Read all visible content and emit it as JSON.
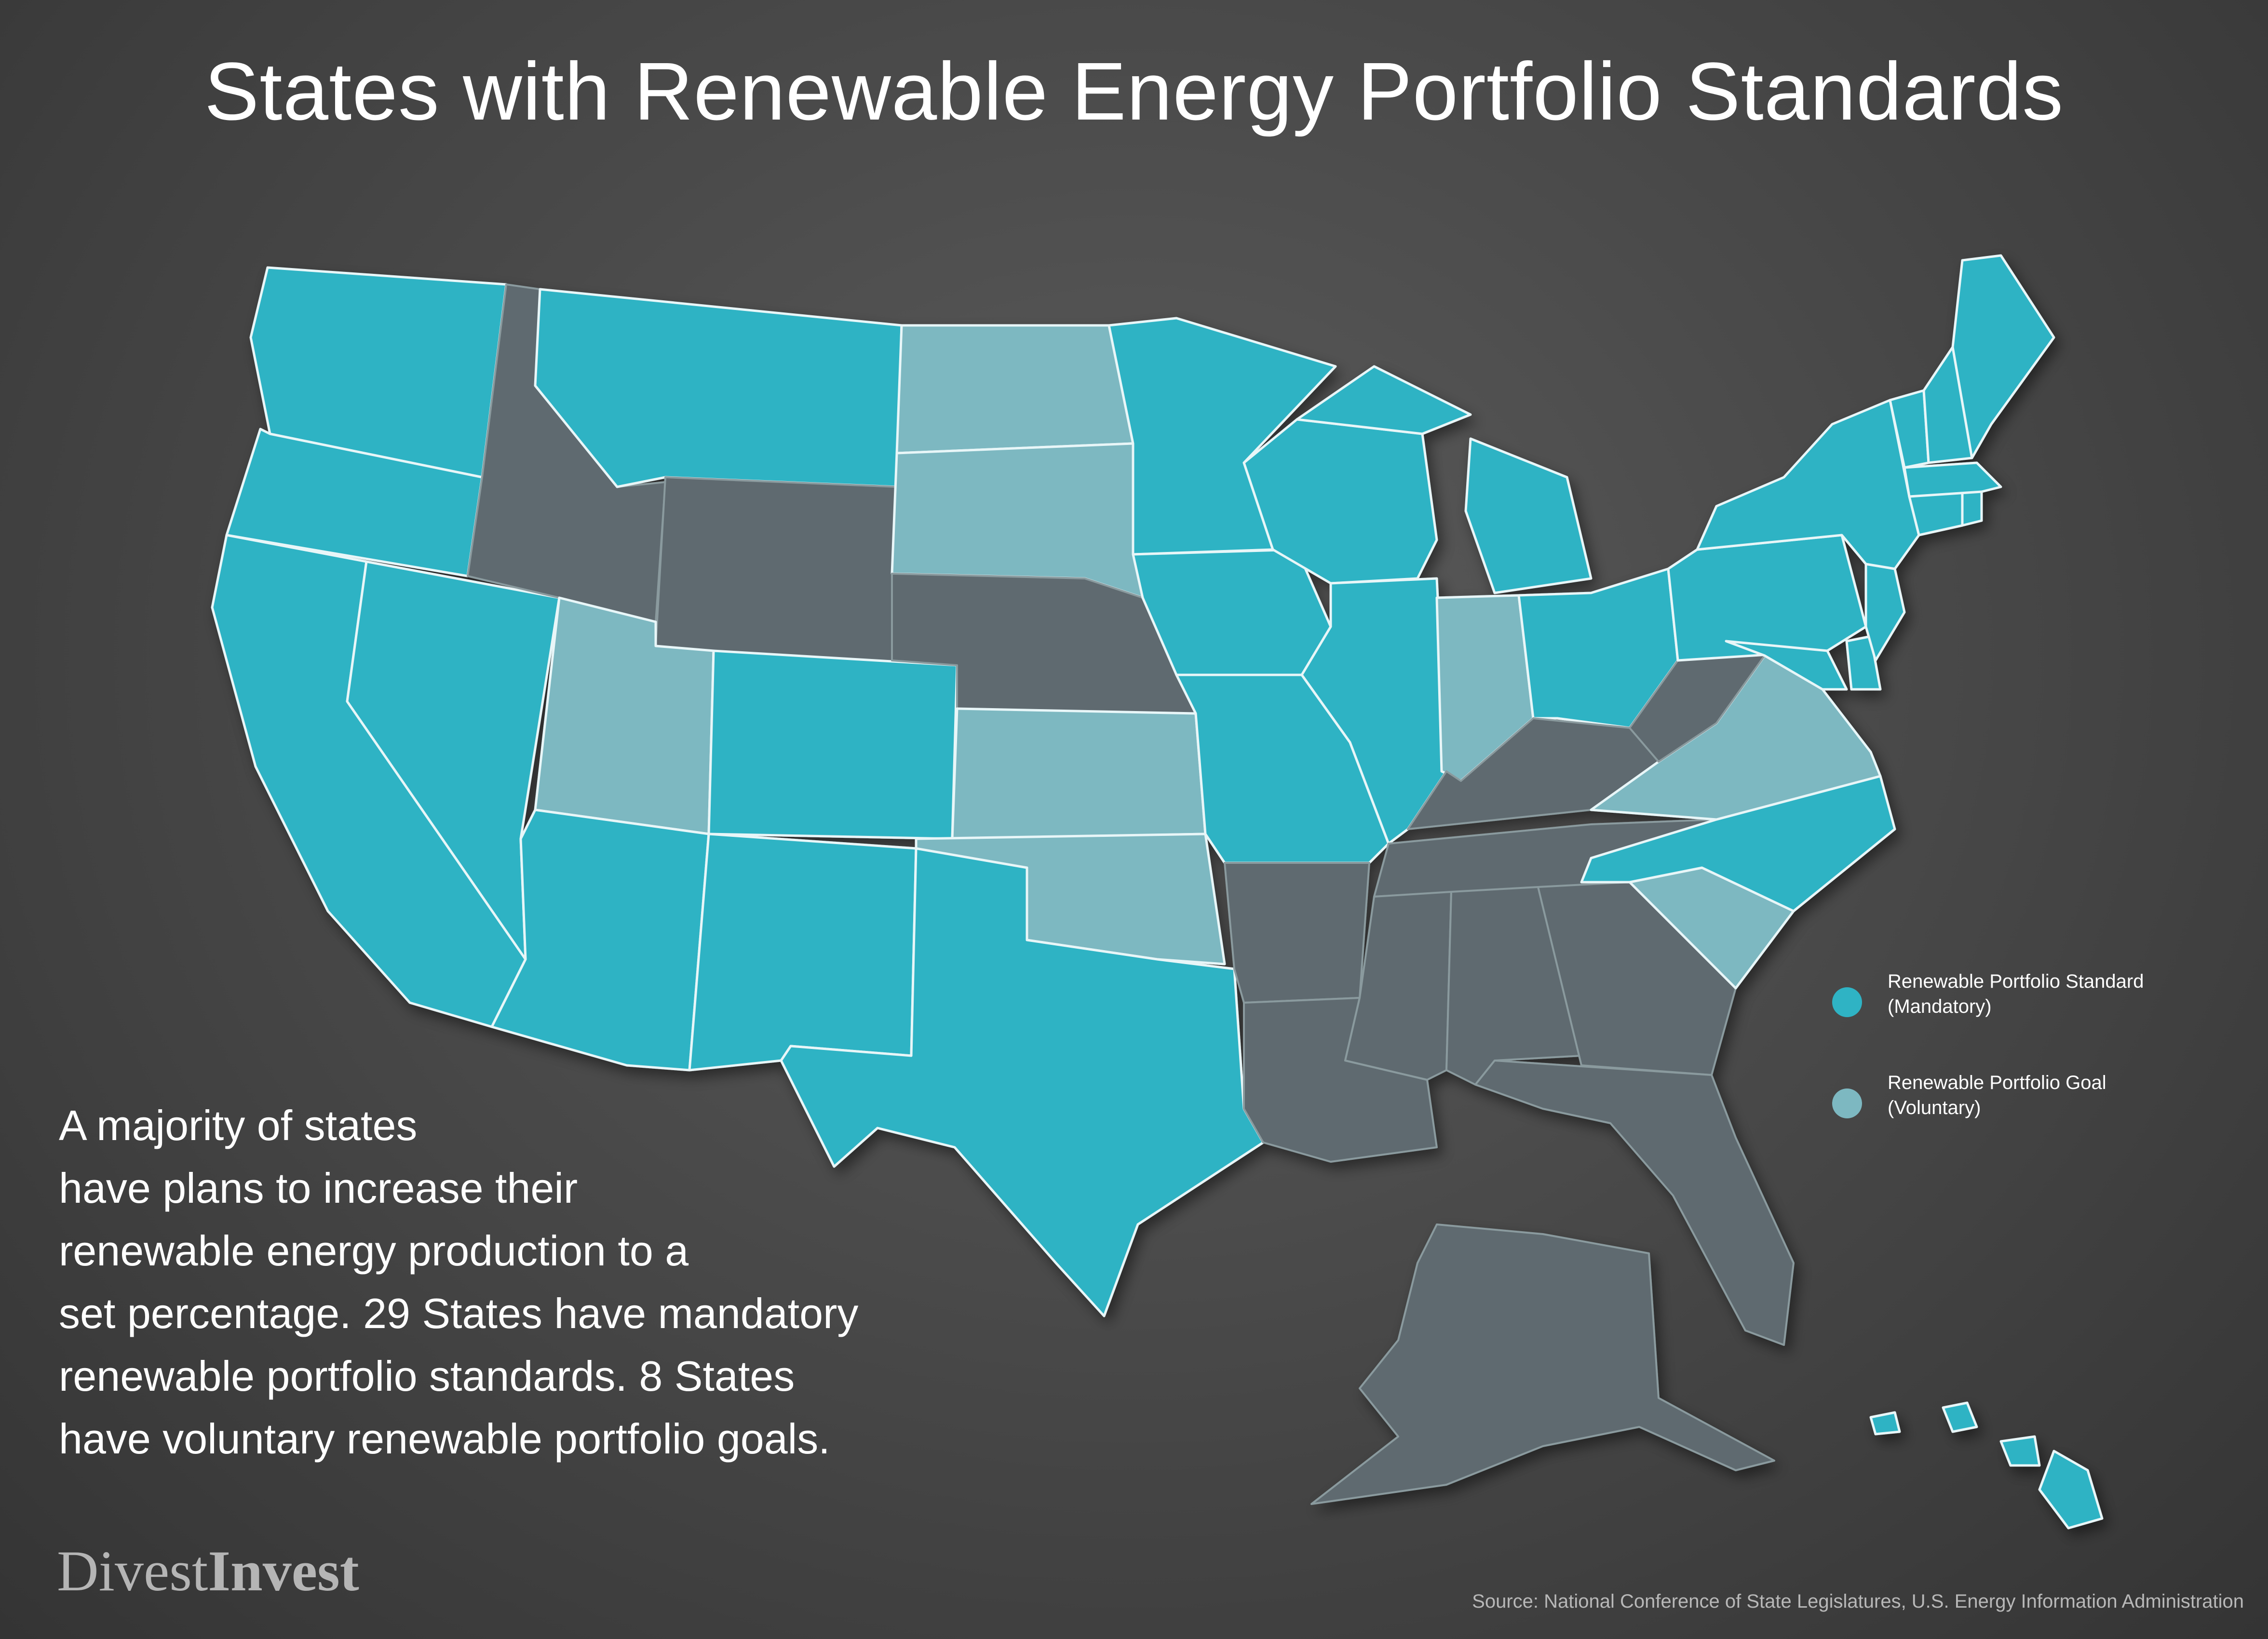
{
  "title": "States with Renewable Energy Portfolio Standards",
  "colors": {
    "mandatory": "#2fb3c4",
    "goal": "#7db8c1",
    "none": "#5f6b70",
    "background": "#4a4a4a"
  },
  "legend": {
    "items": [
      {
        "label_line1": "Renewable Portfolio Standard",
        "label_line2": "(Mandatory)",
        "category": "mandatory"
      },
      {
        "label_line1": "Renewable Portfolio Goal",
        "label_line2": "(Voluntary)",
        "category": "goal"
      }
    ]
  },
  "body_text": {
    "line1": "A majority of states",
    "line2": "have plans to increase their",
    "line3": "renewable energy production to a",
    "line4": "set percentage. 29 States have mandatory",
    "line5": "renewable portfolio standards. 8 States",
    "line6": "have voluntary renewable portfolio goals."
  },
  "brand": {
    "part1": "Divest",
    "part2": "Invest"
  },
  "source": "Source: National Conference of State Legislatures, U.S. Energy Information Administration",
  "map_states": {
    "mandatory": [
      "Washington",
      "Oregon",
      "California",
      "Nevada",
      "Arizona",
      "Montana",
      "Colorado",
      "New Mexico",
      "Texas",
      "Minnesota",
      "Iowa",
      "Missouri",
      "Illinois",
      "Wisconsin",
      "Michigan",
      "Ohio",
      "Pennsylvania",
      "New York",
      "Vermont",
      "New Hampshire",
      "Maine",
      "Massachusetts",
      "Connecticut",
      "Rhode Island",
      "New Jersey",
      "Delaware",
      "Maryland",
      "North Carolina",
      "Hawaii"
    ],
    "goal": [
      "North Dakota",
      "South Dakota",
      "Utah",
      "Kansas",
      "Oklahoma",
      "Indiana",
      "Virginia",
      "South Carolina"
    ],
    "none": [
      "Idaho",
      "Wyoming",
      "Nebraska",
      "Arkansas",
      "Louisiana",
      "Mississippi",
      "Alabama",
      "Georgia",
      "Florida",
      "Tennessee",
      "Kentucky",
      "West Virginia",
      "Alaska"
    ]
  }
}
